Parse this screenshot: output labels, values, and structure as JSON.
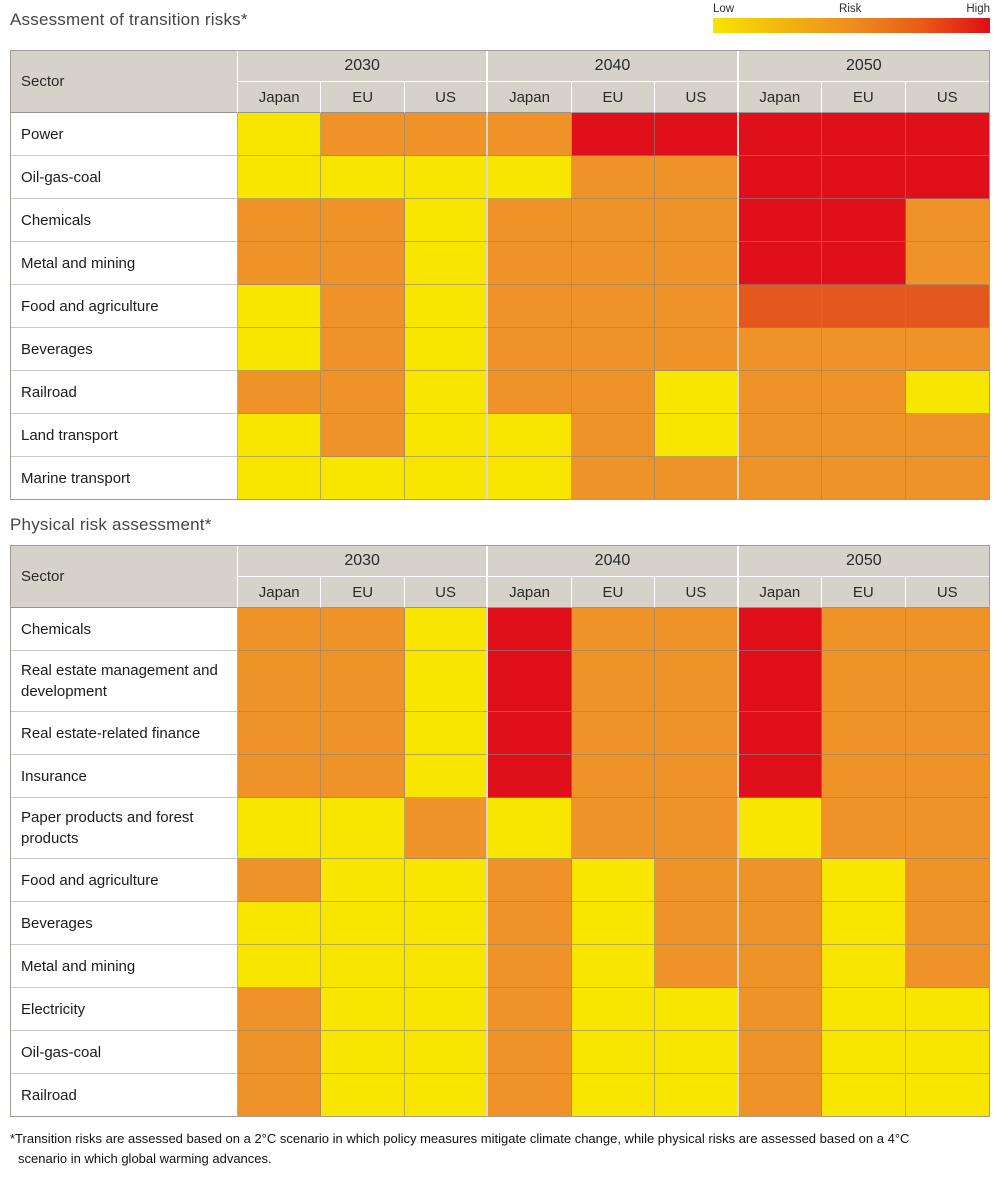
{
  "titles": {
    "table1": "Assessment of transition risks*",
    "table2": "Physical risk assessment*"
  },
  "legend": {
    "low_label": "Low",
    "mid_label": "Risk",
    "high_label": "High",
    "gradient": [
      "#F8E400",
      "#F2B60E",
      "#EE8D1F",
      "#E85C17",
      "#DF0D15"
    ]
  },
  "header": {
    "sector": "Sector",
    "years": [
      "2030",
      "2040",
      "2050"
    ],
    "regions": [
      "Japan",
      "EU",
      "US"
    ]
  },
  "colors": {
    "Y": "#F8E600",
    "O": "#EF9228",
    "D": "#E5581D",
    "R": "#E0101B",
    "header_bg": "#D6D2CA"
  },
  "scale_meaning": {
    "Y": "low",
    "O": "medium",
    "D": "medium-high",
    "R": "high"
  },
  "chart_data": [
    {
      "type": "heatmap",
      "title": "Assessment of transition risks*",
      "columns": [
        "2030 Japan",
        "2030 EU",
        "2030 US",
        "2040 Japan",
        "2040 EU",
        "2040 US",
        "2050 Japan",
        "2050 EU",
        "2050 US"
      ],
      "levels": {
        "Y": "low",
        "O": "medium",
        "D": "medium-high",
        "R": "high"
      },
      "rows": [
        {
          "sector": "Power",
          "cells": [
            "Y",
            "O",
            "O",
            "O",
            "R",
            "R",
            "R",
            "R",
            "R"
          ]
        },
        {
          "sector": "Oil-gas-coal",
          "cells": [
            "Y",
            "Y",
            "Y",
            "Y",
            "O",
            "O",
            "R",
            "R",
            "R"
          ]
        },
        {
          "sector": "Chemicals",
          "cells": [
            "O",
            "O",
            "Y",
            "O",
            "O",
            "O",
            "R",
            "R",
            "O"
          ]
        },
        {
          "sector": "Metal and mining",
          "cells": [
            "O",
            "O",
            "Y",
            "O",
            "O",
            "O",
            "R",
            "R",
            "O"
          ]
        },
        {
          "sector": "Food and agriculture",
          "cells": [
            "Y",
            "O",
            "Y",
            "O",
            "O",
            "O",
            "D",
            "D",
            "D"
          ]
        },
        {
          "sector": "Beverages",
          "cells": [
            "Y",
            "O",
            "Y",
            "O",
            "O",
            "O",
            "O",
            "O",
            "O"
          ]
        },
        {
          "sector": "Railroad",
          "cells": [
            "O",
            "O",
            "Y",
            "O",
            "O",
            "Y",
            "O",
            "O",
            "Y"
          ]
        },
        {
          "sector": "Land transport",
          "cells": [
            "Y",
            "O",
            "Y",
            "Y",
            "O",
            "Y",
            "O",
            "O",
            "O"
          ]
        },
        {
          "sector": "Marine transport",
          "cells": [
            "Y",
            "Y",
            "Y",
            "Y",
            "O",
            "O",
            "O",
            "O",
            "O"
          ]
        }
      ]
    },
    {
      "type": "heatmap",
      "title": "Physical risk assessment*",
      "columns": [
        "2030 Japan",
        "2030 EU",
        "2030 US",
        "2040 Japan",
        "2040 EU",
        "2040 US",
        "2050 Japan",
        "2050 EU",
        "2050 US"
      ],
      "levels": {
        "Y": "low",
        "O": "medium",
        "D": "medium-high",
        "R": "high"
      },
      "rows": [
        {
          "sector": "Chemicals",
          "cells": [
            "O",
            "O",
            "Y",
            "R",
            "O",
            "O",
            "R",
            "O",
            "O"
          ]
        },
        {
          "sector": "Real estate management and development",
          "cells": [
            "O",
            "O",
            "Y",
            "R",
            "O",
            "O",
            "R",
            "O",
            "O"
          ]
        },
        {
          "sector": "Real estate-related finance",
          "cells": [
            "O",
            "O",
            "Y",
            "R",
            "O",
            "O",
            "R",
            "O",
            "O"
          ]
        },
        {
          "sector": "Insurance",
          "cells": [
            "O",
            "O",
            "Y",
            "R",
            "O",
            "O",
            "R",
            "O",
            "O"
          ]
        },
        {
          "sector": "Paper products and forest products",
          "cells": [
            "Y",
            "Y",
            "O",
            "Y",
            "O",
            "O",
            "Y",
            "O",
            "O"
          ]
        },
        {
          "sector": "Food and agriculture",
          "cells": [
            "O",
            "Y",
            "Y",
            "O",
            "Y",
            "O",
            "O",
            "Y",
            "O"
          ]
        },
        {
          "sector": "Beverages",
          "cells": [
            "Y",
            "Y",
            "Y",
            "O",
            "Y",
            "O",
            "O",
            "Y",
            "O"
          ]
        },
        {
          "sector": "Metal and mining",
          "cells": [
            "Y",
            "Y",
            "Y",
            "O",
            "Y",
            "O",
            "O",
            "Y",
            "O"
          ]
        },
        {
          "sector": "Electricity",
          "cells": [
            "O",
            "Y",
            "Y",
            "O",
            "Y",
            "Y",
            "O",
            "Y",
            "Y"
          ]
        },
        {
          "sector": "Oil-gas-coal",
          "cells": [
            "O",
            "Y",
            "Y",
            "O",
            "Y",
            "Y",
            "O",
            "Y",
            "Y"
          ]
        },
        {
          "sector": "Railroad",
          "cells": [
            "O",
            "Y",
            "Y",
            "O",
            "Y",
            "Y",
            "O",
            "Y",
            "Y"
          ]
        }
      ]
    }
  ],
  "footnote": "*Transition risks are assessed based on a 2°C scenario in which policy measures mitigate climate change, while physical risks are assessed based on a 4°C scenario in which global warming advances."
}
